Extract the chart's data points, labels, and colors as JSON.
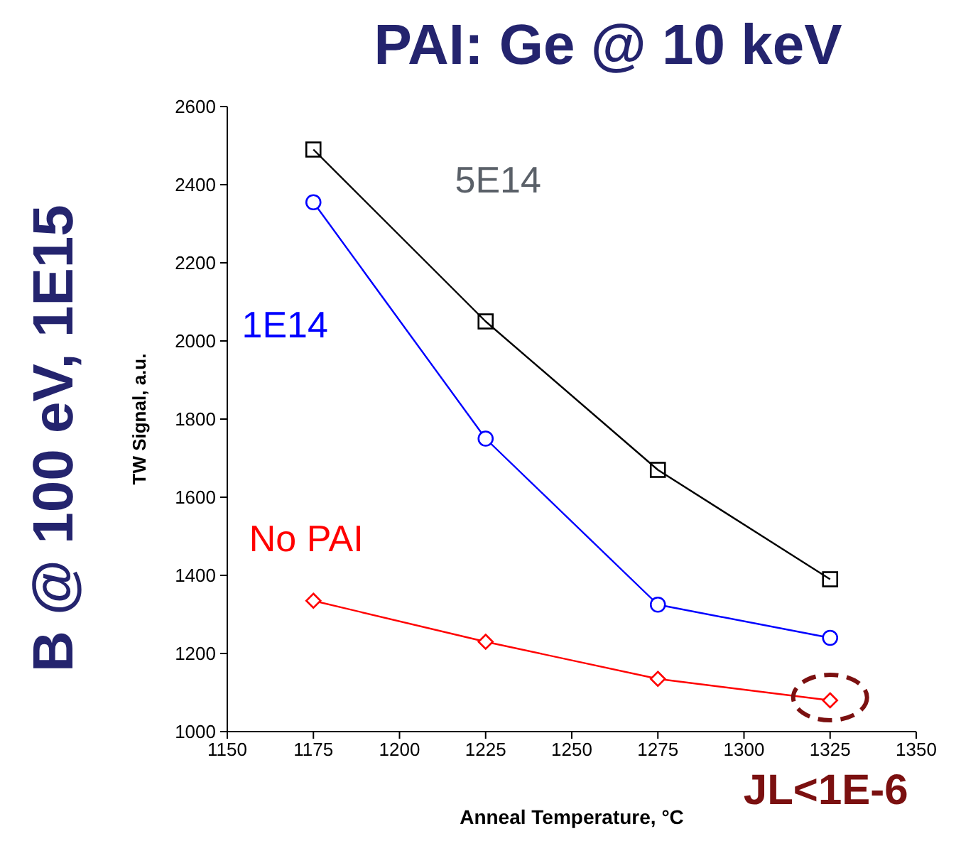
{
  "chart_data": {
    "type": "line",
    "title": "PAI: Ge @ 10 keV",
    "subtitle": "B @ 100 eV, 1E15",
    "xlabel": "Anneal Temperature, °C",
    "ylabel": "TW Signal, a.u.",
    "x": [
      1175,
      1225,
      1275,
      1325
    ],
    "series": [
      {
        "name": "5E14",
        "color": "#000000",
        "marker": "square",
        "values": [
          2490,
          2050,
          1670,
          1390
        ]
      },
      {
        "name": "1E14",
        "color": "#0000ff",
        "marker": "circle",
        "values": [
          2355,
          1750,
          1325,
          1240
        ]
      },
      {
        "name": "No PAI",
        "color": "#ff0000",
        "marker": "diamond",
        "values": [
          1335,
          1230,
          1135,
          1080
        ]
      }
    ],
    "annotations": [
      {
        "text": "JL<1E-6",
        "x": 1325,
        "y": 1080
      }
    ],
    "xlim": [
      1150,
      1350
    ],
    "xticks": [
      1150,
      1175,
      1200,
      1225,
      1250,
      1275,
      1300,
      1325,
      1350
    ],
    "ylim": [
      1000,
      2600
    ],
    "yticks": [
      1000,
      1200,
      1400,
      1600,
      1800,
      2000,
      2200,
      2400,
      2600
    ],
    "grid": false,
    "legend": false,
    "line_style": "solid"
  }
}
